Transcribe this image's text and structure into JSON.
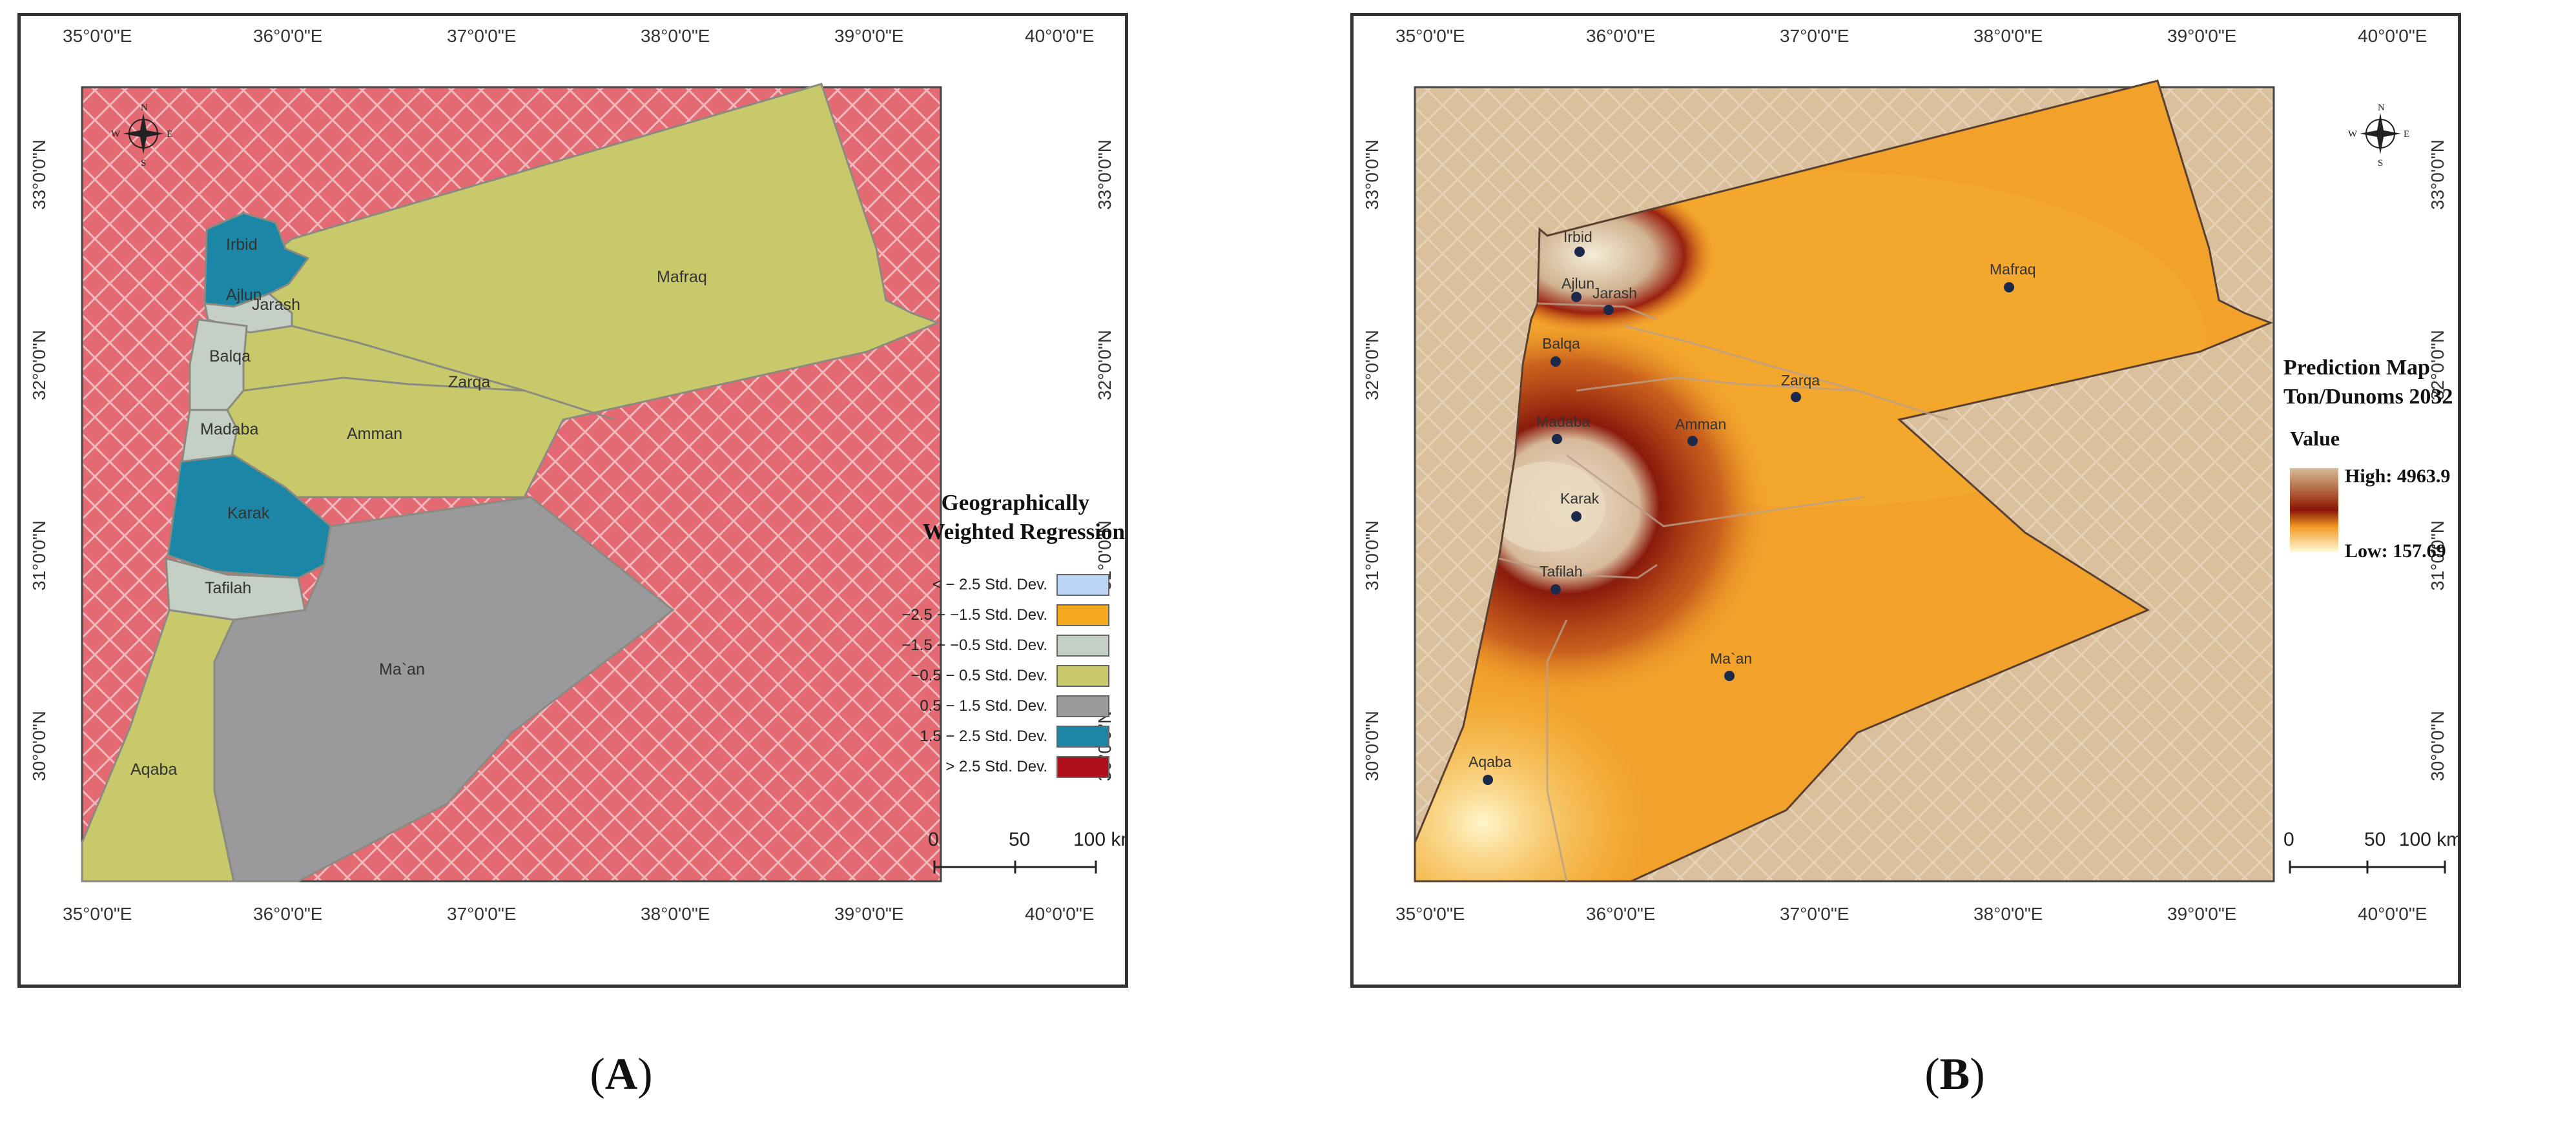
{
  "panels": {
    "A": {
      "caption": "A",
      "x_ticks": [
        "35°0'0\"E",
        "36°0'0\"E",
        "37°0'0\"E",
        "38°0'0\"E",
        "39°0'0\"E",
        "40°0'0\"E"
      ],
      "y_ticks": [
        "33°0'0\"N",
        "32°0'0\"N",
        "31°0'0\"N",
        "30°0'0\"N"
      ],
      "legend": {
        "title_line1": "Geographically",
        "title_line2": "Weighted Regression",
        "items": [
          {
            "label": "< − 2.5 Std. Dev.",
            "color": "#bcd4f5"
          },
          {
            "label": "−2.5 − −1.5 Std. Dev.",
            "color": "#f4a81d"
          },
          {
            "label": "−1.5 − −0.5 Std. Dev.",
            "color": "#c4cfc5"
          },
          {
            "label": "−0.5 − 0.5 Std. Dev.",
            "color": "#c8c96a"
          },
          {
            "label": "0.5 − 1.5 Std. Dev.",
            "color": "#9a9a9c"
          },
          {
            "label": "1.5 − 2.5 Std. Dev.",
            "color": "#1c86a6"
          },
          {
            "label": "> 2.5 Std. Dev.",
            "color": "#b0101c"
          }
        ]
      },
      "scale": {
        "labels": [
          "0",
          "50",
          "100 km"
        ]
      },
      "compass": {
        "n": "N",
        "s": "S",
        "e": "E",
        "w": "W"
      },
      "regions": [
        "Irbid",
        "Ajlun",
        "Jarash",
        "Balqa",
        "Mafraq",
        "Zarqa",
        "Amman",
        "Madaba",
        "Karak",
        "Tafilah",
        "Ma`an",
        "Aqaba"
      ]
    },
    "B": {
      "caption": "B",
      "x_ticks": [
        "35°0'0\"E",
        "36°0'0\"E",
        "37°0'0\"E",
        "38°0'0\"E",
        "39°0'0\"E",
        "40°0'0\"E"
      ],
      "y_ticks": [
        "33°0'0\"N",
        "32°0'0\"N",
        "31°0'0\"N",
        "30°0'0\"N"
      ],
      "legend": {
        "title_line1": "Prediction Map",
        "title_line2": "Ton/Dunoms 2032",
        "value_label": "Value",
        "high": "High: 4963.9",
        "low": "Low: 157.69"
      },
      "scale": {
        "labels": [
          "0",
          "50",
          "100 km"
        ]
      },
      "compass": {
        "n": "N",
        "s": "S",
        "e": "E",
        "w": "W"
      },
      "cities": [
        "Irbid",
        "Ajlun",
        "Jarash",
        "Mafraq",
        "Balqa",
        "Zarqa",
        "Madaba",
        "Amman",
        "Karak",
        "Tafilah",
        "Ma`an",
        "Aqaba"
      ]
    }
  },
  "colors": {
    "sea_hatch_bg": "#e36a72",
    "sea_hatch_line": "#f1b9bd",
    "tan_bg": "#d9bf9c",
    "tan_line": "#e6d2b6",
    "region_border": "#8a8a80"
  }
}
